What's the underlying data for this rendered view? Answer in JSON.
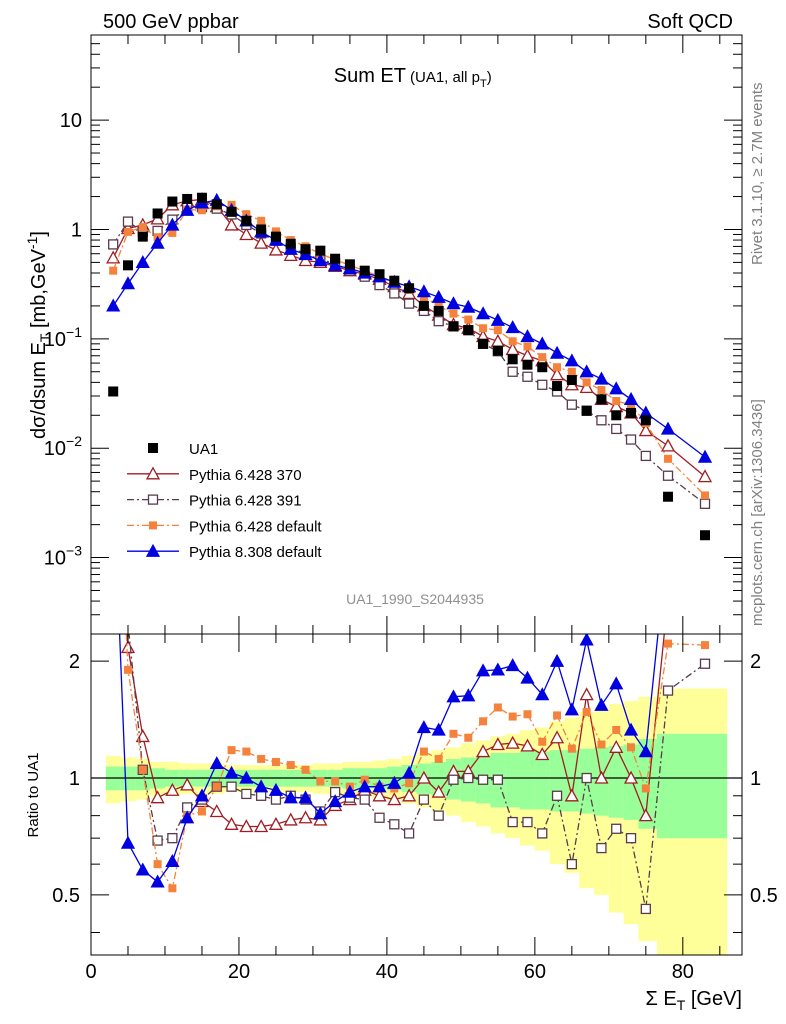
{
  "header": {
    "left": "500 GeV ppbar",
    "right": "Soft QCD"
  },
  "side_labels": {
    "rivet": "Rivet 3.1.10,  ≥ 2.7M events",
    "mcplots": "mcplots.cern.ch [arXiv:1306.3436]"
  },
  "chart_data": {
    "type": "scatter",
    "title": "Sum ET",
    "subtitle": "(UA1, all p",
    "subtitle_sub": "T",
    "subtitle_end": ")",
    "analysis_id": "UA1_1990_S2044935",
    "xlabel": "Σ E",
    "xlabel_sub": "T",
    "xlabel_unit": " [GeV]",
    "ylabel": "dσ/dsum E",
    "ylabel_sub": "T",
    "ylabel_unit": " [mb,GeV",
    "ylabel_sup": "-1",
    "ylabel_end": "]",
    "ratio_ylabel": "Ratio to UA1",
    "xlim": [
      0,
      88
    ],
    "ylim": [
      0.0002,
      60
    ],
    "yscale": "log",
    "ratio_ylim": [
      0.35,
      2.35
    ],
    "ratio_yscale": "log",
    "x_ticks": [
      0,
      20,
      40,
      60,
      80
    ],
    "x_tick_labels": [
      "0",
      "20",
      "40",
      "60",
      "80"
    ],
    "y_ticks": [
      {
        "v": 10,
        "base": "10",
        "exp": ""
      },
      {
        "v": 1,
        "base": "1",
        "exp": ""
      },
      {
        "v": 0.1,
        "base": "10",
        "exp": "−1"
      },
      {
        "v": 0.01,
        "base": "10",
        "exp": "−2"
      },
      {
        "v": 0.001,
        "base": "10",
        "exp": "−3"
      }
    ],
    "ratio_ticks": [
      {
        "v": 0.5,
        "label": "0.5"
      },
      {
        "v": 1,
        "label": "1"
      },
      {
        "v": 2,
        "label": "2"
      }
    ],
    "legend": "bottom-left",
    "x": [
      3,
      5,
      7,
      9,
      11,
      13,
      15,
      17,
      19,
      21,
      23,
      25,
      27,
      29,
      31,
      33,
      35,
      37,
      39,
      41,
      43,
      45,
      47,
      49,
      51,
      53,
      55,
      57,
      59,
      61,
      63,
      65,
      67,
      69,
      71,
      73,
      75,
      78,
      83
    ],
    "ref": {
      "name": "UA1",
      "values": [
        0.033,
        0.47,
        0.86,
        1.4,
        1.8,
        1.9,
        1.95,
        1.7,
        1.45,
        1.2,
        1.0,
        0.86,
        0.74,
        0.66,
        0.64,
        0.54,
        0.48,
        0.42,
        0.39,
        0.34,
        0.29,
        0.2,
        0.18,
        0.13,
        0.12,
        0.09,
        0.078,
        0.065,
        0.058,
        0.055,
        0.037,
        0.042,
        0.022,
        0.028,
        0.02,
        0.021,
        0.018,
        0.0036,
        0.0016
      ],
      "band_inner": [
        0.07,
        0.07,
        0.07,
        0.06,
        0.05,
        0.05,
        0.05,
        0.05,
        0.05,
        0.05,
        0.05,
        0.05,
        0.05,
        0.05,
        0.05,
        0.05,
        0.06,
        0.06,
        0.06,
        0.07,
        0.08,
        0.09,
        0.1,
        0.12,
        0.13,
        0.14,
        0.16,
        0.16,
        0.17,
        0.17,
        0.18,
        0.18,
        0.19,
        0.2,
        0.21,
        0.22,
        0.26,
        0.3,
        0.3
      ],
      "band_outer": [
        0.14,
        0.13,
        0.12,
        0.1,
        0.1,
        0.09,
        0.09,
        0.09,
        0.08,
        0.08,
        0.08,
        0.08,
        0.08,
        0.08,
        0.09,
        0.09,
        0.1,
        0.1,
        0.11,
        0.12,
        0.14,
        0.16,
        0.18,
        0.2,
        0.23,
        0.25,
        0.28,
        0.3,
        0.33,
        0.35,
        0.4,
        0.43,
        0.48,
        0.5,
        0.55,
        0.58,
        0.62,
        0.7,
        0.7
      ]
    },
    "series": [
      {
        "name": "Pythia 6.428 370",
        "color": "#a01d23",
        "marker": "triangle-open",
        "dash": "",
        "values": [
          0.55,
          1.02,
          1.1,
          1.25,
          1.68,
          1.83,
          1.88,
          1.62,
          1.1,
          0.9,
          0.75,
          0.65,
          0.58,
          0.52,
          0.5,
          0.46,
          0.42,
          0.39,
          0.35,
          0.3,
          0.26,
          0.2,
          0.165,
          0.135,
          0.125,
          0.105,
          0.095,
          0.08,
          0.07,
          0.063,
          0.047,
          0.038,
          0.036,
          0.028,
          0.024,
          0.021,
          0.0145,
          0.0105,
          0.0055
        ],
        "ratio": [
          16.7,
          2.17,
          1.28,
          0.89,
          0.93,
          0.96,
          0.87,
          0.82,
          0.76,
          0.75,
          0.75,
          0.76,
          0.78,
          0.79,
          0.78,
          0.85,
          0.88,
          0.93,
          0.9,
          0.88,
          0.9,
          1.0,
          0.92,
          1.04,
          1.04,
          1.17,
          1.22,
          1.23,
          1.21,
          1.15,
          1.27,
          0.9,
          1.64,
          1.0,
          1.2,
          1.0,
          0.8,
          2.92,
          3.44
        ]
      },
      {
        "name": "Pythia 6.428 391",
        "color": "#5a3a4c",
        "marker": "square-open",
        "dash": "7,3,2,3",
        "values": [
          0.73,
          1.18,
          0.95,
          0.97,
          1.23,
          1.58,
          1.6,
          1.55,
          1.37,
          1.1,
          0.92,
          0.79,
          0.68,
          0.6,
          0.53,
          0.49,
          0.42,
          0.37,
          0.31,
          0.26,
          0.21,
          0.18,
          0.145,
          0.13,
          0.12,
          0.09,
          0.077,
          0.05,
          0.045,
          0.038,
          0.033,
          0.025,
          0.022,
          0.018,
          0.015,
          0.012,
          0.0085,
          0.0056,
          0.0031
        ],
        "ratio": [
          22.0,
          2.5,
          1.05,
          0.69,
          0.7,
          0.84,
          0.88,
          0.95,
          0.95,
          0.91,
          0.9,
          0.88,
          0.9,
          0.88,
          0.82,
          0.92,
          0.89,
          0.88,
          0.79,
          0.76,
          0.72,
          0.88,
          0.8,
          0.99,
          1.0,
          0.99,
          0.99,
          0.77,
          0.77,
          0.72,
          0.9,
          0.6,
          1.0,
          0.66,
          0.74,
          0.7,
          0.46,
          1.68,
          1.97
        ]
      },
      {
        "name": "Pythia 6.428 default",
        "color": "#f5823c",
        "marker": "square-filled",
        "dash": "7,3,2,3",
        "values": [
          0.42,
          0.95,
          1.05,
          0.85,
          0.93,
          1.52,
          1.5,
          1.63,
          1.68,
          1.38,
          1.2,
          0.96,
          0.8,
          0.7,
          0.6,
          0.53,
          0.47,
          0.42,
          0.37,
          0.32,
          0.28,
          0.24,
          0.2,
          0.17,
          0.15,
          0.125,
          0.12,
          0.095,
          0.085,
          0.068,
          0.055,
          0.05,
          0.04,
          0.034,
          0.027,
          0.025,
          0.017,
          0.008,
          0.0037
        ],
        "ratio": [
          12.7,
          1.9,
          1.05,
          0.6,
          0.52,
          0.8,
          0.82,
          0.95,
          1.18,
          1.17,
          1.12,
          1.1,
          1.08,
          1.05,
          0.98,
          0.98,
          0.95,
          0.99,
          0.95,
          0.94,
          0.97,
          1.17,
          1.12,
          1.3,
          1.27,
          1.4,
          1.52,
          1.44,
          1.46,
          1.24,
          1.45,
          1.19,
          1.48,
          1.22,
          1.33,
          1.2,
          0.94,
          2.22,
          2.2
        ]
      },
      {
        "name": "Pythia 8.308 default",
        "color": "#0000e0",
        "marker": "triangle-filled",
        "dash": "",
        "values": [
          0.2,
          0.32,
          0.5,
          0.75,
          1.1,
          1.5,
          1.75,
          1.85,
          1.5,
          1.2,
          0.95,
          0.8,
          0.66,
          0.59,
          0.52,
          0.47,
          0.44,
          0.4,
          0.37,
          0.33,
          0.3,
          0.27,
          0.24,
          0.21,
          0.195,
          0.17,
          0.148,
          0.127,
          0.105,
          0.09,
          0.074,
          0.063,
          0.05,
          0.043,
          0.035,
          0.028,
          0.021,
          0.015,
          0.0083
        ],
        "ratio": [
          6.06,
          0.68,
          0.58,
          0.54,
          0.61,
          0.79,
          0.9,
          1.09,
          1.03,
          1.0,
          0.95,
          0.93,
          0.89,
          0.89,
          0.81,
          0.87,
          0.92,
          0.95,
          0.95,
          0.97,
          1.03,
          1.35,
          1.33,
          1.62,
          1.63,
          1.89,
          1.9,
          1.95,
          1.81,
          1.64,
          2.0,
          1.5,
          2.27,
          1.54,
          1.75,
          1.33,
          1.17,
          4.17,
          5.19
        ]
      }
    ]
  }
}
